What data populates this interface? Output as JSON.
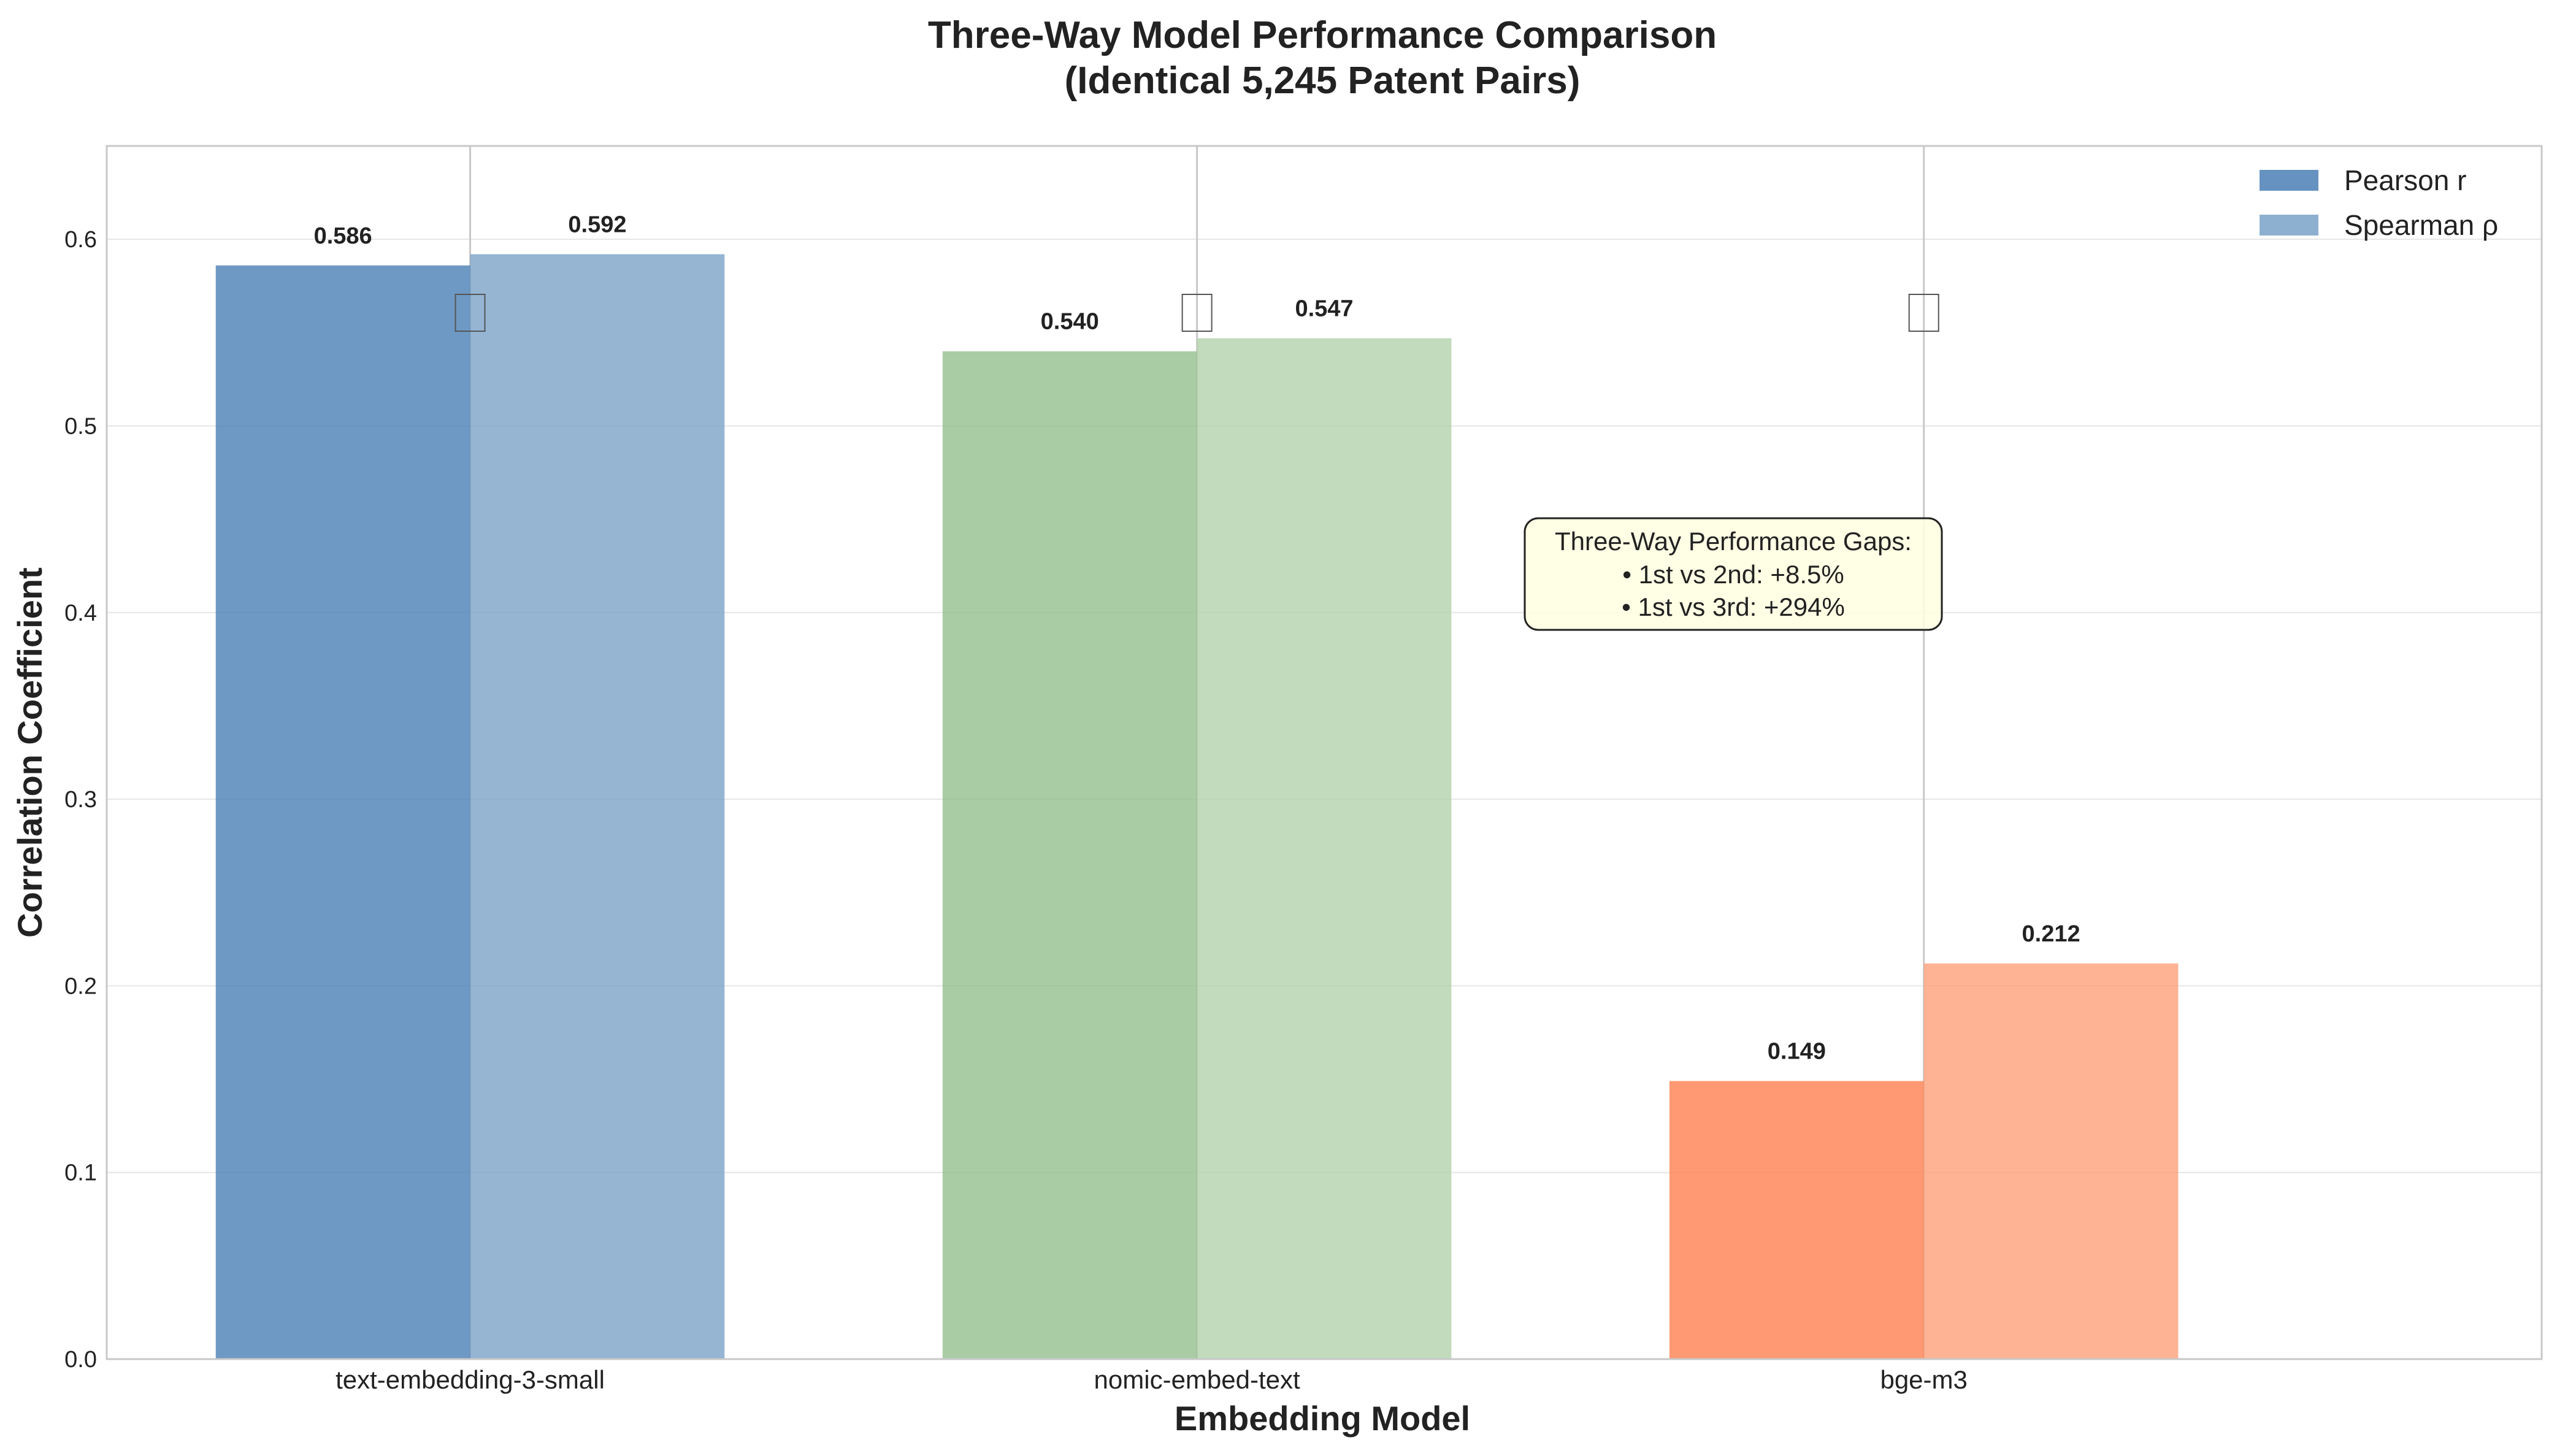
{
  "chart_data": {
    "type": "bar",
    "title": "Three-Way Model Performance Comparison",
    "subtitle": "(Identical 5,245 Patent Pairs)",
    "xlabel": "Embedding Model",
    "ylabel": "Correlation Coefficient",
    "ylim": [
      0,
      0.65
    ],
    "yticks": [
      "0.0",
      "0.1",
      "0.2",
      "0.3",
      "0.4",
      "0.5",
      "0.6"
    ],
    "grid": true,
    "legend_position": "top-right",
    "categories": [
      "text-embedding-3-small",
      "nomic-embed-text",
      "bge-m3"
    ],
    "series": [
      {
        "name": "Pearson r",
        "values": [
          0.586,
          0.54,
          0.149
        ],
        "labels": [
          "0.586",
          "0.540",
          "0.149"
        ],
        "colors": [
          "#4a7fb5",
          "#93bf8e",
          "#ff7f50"
        ]
      },
      {
        "name": "Spearman ρ",
        "values": [
          0.592,
          0.547,
          0.212
        ],
        "labels": [
          "0.592",
          "0.547",
          "0.212"
        ],
        "colors": [
          "#7aa2c8",
          "#b2d2ab",
          "#ffa07a"
        ]
      }
    ],
    "legend_colors": [
      "#4a7fb5",
      "#7aa2c8"
    ],
    "annotation": {
      "lines": [
        "Three-Way Performance Gaps:",
        "• 1st vs 2nd: +8.5%",
        "• 1st vs 3rd: +294%"
      ],
      "background": "#ffffe0"
    }
  }
}
